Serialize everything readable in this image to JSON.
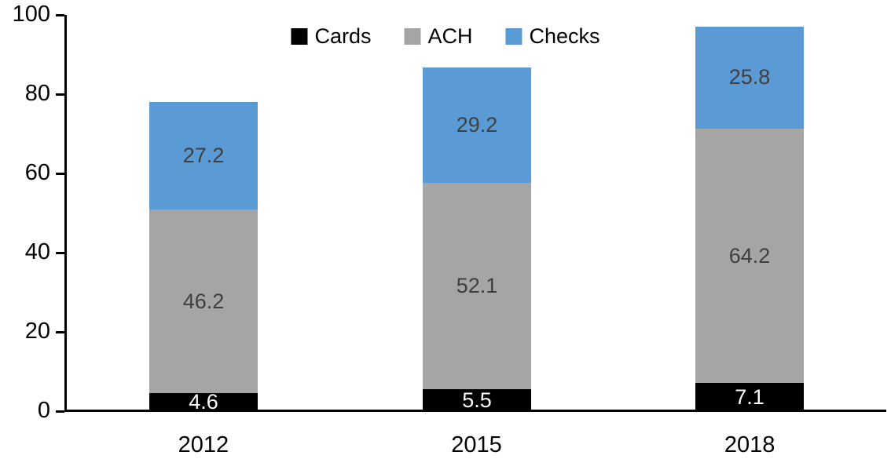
{
  "chart_data": {
    "type": "bar",
    "stacked": true,
    "title": "",
    "xlabel": "",
    "ylabel": "",
    "categories": [
      "2012",
      "2015",
      "2018"
    ],
    "series": [
      {
        "name": "Cards",
        "color": "#000000",
        "label_color": "#ffffff",
        "values": [
          4.6,
          5.5,
          7.1
        ]
      },
      {
        "name": "ACH",
        "color": "#a5a5a5",
        "label_color": "#3f3f3f",
        "values": [
          46.2,
          52.1,
          64.2
        ]
      },
      {
        "name": "Checks",
        "color": "#5b9bd5",
        "label_color": "#3f3f3f",
        "values": [
          27.2,
          29.2,
          25.8
        ]
      }
    ],
    "ylim": [
      0,
      100
    ],
    "yticks": [
      0,
      20,
      40,
      60,
      80,
      100
    ],
    "legend_position": "top-center",
    "legend_labels": [
      "Cards",
      "ACH",
      "Checks"
    ],
    "grid": false,
    "data_labels_visible": true,
    "background_color": "#ffffff",
    "axis_color": "#000000"
  }
}
